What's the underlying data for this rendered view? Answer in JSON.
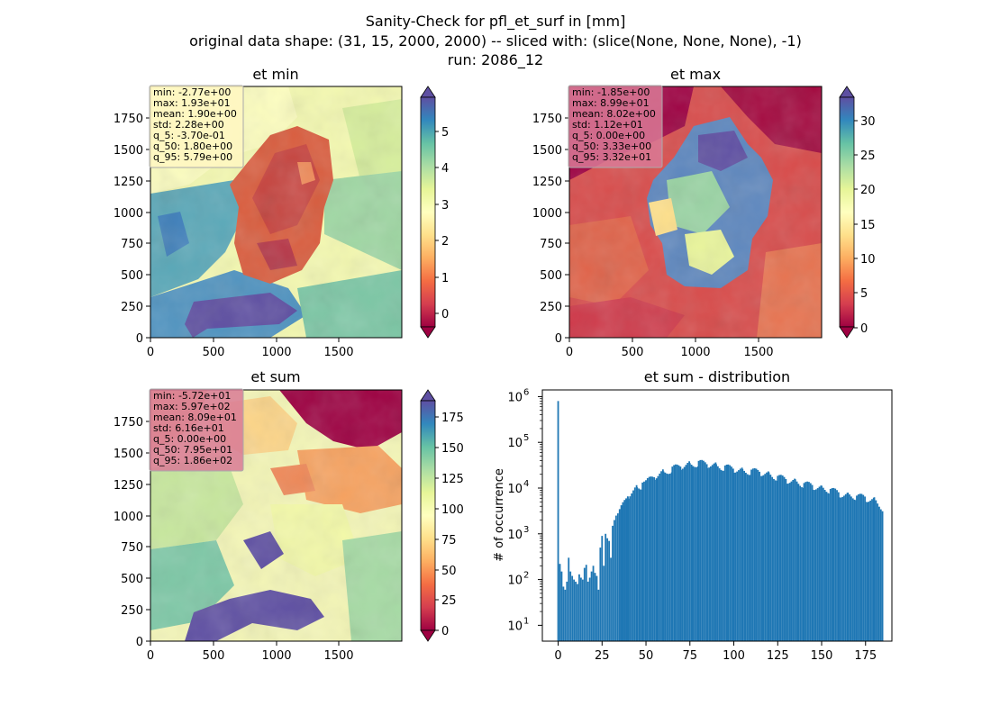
{
  "figure": {
    "suptitle": [
      "Sanity-Check for pfl_et_surf in [mm]",
      "original data shape: (31, 15, 2000, 2000) -- sliced with: (slice(None, None, None), -1)",
      "run: 2086_12"
    ]
  },
  "chart_data": [
    {
      "type": "heatmap",
      "title": "et min",
      "colormap": "Spectral",
      "x_ticks": [
        "0",
        "500",
        "1000",
        "1500"
      ],
      "y_ticks": [
        "0",
        "250",
        "500",
        "750",
        "1000",
        "1250",
        "1500",
        "1750"
      ],
      "xlim": [
        0,
        2000
      ],
      "ylim": [
        0,
        2000
      ],
      "colorbar": {
        "ticks": [
          "0",
          "1",
          "2",
          "3",
          "4",
          "5"
        ],
        "range": [
          -0.5,
          5.8
        ],
        "extend": "both"
      },
      "stats": [
        "min: -2.77e+00",
        "max: 1.93e+01",
        "mean: 1.90e+00",
        "std: 2.28e+00",
        "q_5: -3.70e-01",
        "q_50: 1.80e+00",
        "q_95: 5.79e+00"
      ],
      "stats_box_color": "#fff7c2"
    },
    {
      "type": "heatmap",
      "title": "et max",
      "colormap": "Spectral",
      "x_ticks": [
        "0",
        "500",
        "1000",
        "1500"
      ],
      "y_ticks": [
        "0",
        "250",
        "500",
        "750",
        "1000",
        "1250",
        "1500",
        "1750"
      ],
      "xlim": [
        0,
        2000
      ],
      "ylim": [
        0,
        2000
      ],
      "colorbar": {
        "ticks": [
          "0",
          "5",
          "10",
          "15",
          "20",
          "25",
          "30"
        ],
        "range": [
          -1,
          33.5
        ],
        "extend": "both"
      },
      "stats": [
        "min: -1.85e+00",
        "max: 8.99e+01",
        "mean: 8.02e+00",
        "std: 1.12e+01",
        "q_5: 0.00e+00",
        "q_50: 3.33e+00",
        "q_95: 3.32e+01"
      ],
      "stats_box_color": "#d97a96"
    },
    {
      "type": "heatmap",
      "title": "et sum",
      "colormap": "Spectral",
      "x_ticks": [
        "0",
        "500",
        "1000",
        "1500"
      ],
      "y_ticks": [
        "0",
        "250",
        "500",
        "750",
        "1000",
        "1250",
        "1500",
        "1750"
      ],
      "xlim": [
        0,
        2000
      ],
      "ylim": [
        0,
        2000
      ],
      "colorbar": {
        "ticks": [
          "0",
          "25",
          "50",
          "75",
          "100",
          "125",
          "150",
          "175"
        ],
        "range": [
          -4,
          193
        ],
        "extend": "both"
      },
      "stats": [
        "min: -5.72e+01",
        "max: 5.97e+02",
        "mean: 8.09e+01",
        "std: 6.16e+01",
        "q_5: 0.00e+00",
        "q_50: 7.95e+01",
        "q_95: 1.86e+02"
      ],
      "stats_box_color": "#d97a96"
    },
    {
      "type": "bar",
      "title": "et sum - distribution",
      "xlabel": "",
      "ylabel": "# of occurrence",
      "xlim": [
        -9,
        190
      ],
      "ylim": [
        4.5,
        1400000
      ],
      "yscale": "log",
      "x_ticks": [
        "0",
        "25",
        "50",
        "75",
        "100",
        "125",
        "150",
        "175"
      ],
      "y_ticks": [
        "10^1",
        "10^2",
        "10^3",
        "10^4",
        "10^5",
        "10^6"
      ],
      "bar_color": "#1f77b4",
      "bin_width": 0.93,
      "x": [
        0,
        35,
        40,
        45,
        48,
        50,
        55,
        60,
        65,
        70,
        75,
        80,
        85,
        90,
        95,
        100,
        105,
        110,
        115,
        120,
        125,
        130,
        135,
        140,
        145,
        150,
        155,
        160,
        165,
        170,
        175,
        180,
        185.5
      ],
      "values": [
        800000,
        3000,
        7000,
        10000,
        11000,
        13000,
        18000,
        22000,
        26000,
        30000,
        33000,
        35000,
        33000,
        31000,
        28000,
        26000,
        24000,
        23000,
        22000,
        20000,
        17000,
        15000,
        14000,
        12000,
        11000,
        10000,
        9000,
        7500,
        7000,
        6500,
        6000,
        5500,
        3500
      ],
      "low_bins_x": [
        1,
        2,
        3,
        4,
        5,
        6,
        7,
        8,
        9,
        10,
        11,
        12,
        13,
        14,
        15,
        16,
        17,
        18,
        19,
        20,
        21,
        22,
        23,
        24,
        25,
        26,
        27,
        28,
        29,
        30,
        31,
        32,
        33,
        34
      ],
      "low_bins_values": [
        220,
        150,
        70,
        60,
        90,
        300,
        150,
        120,
        100,
        90,
        80,
        130,
        110,
        100,
        180,
        210,
        90,
        110,
        150,
        200,
        140,
        120,
        60,
        500,
        900,
        200,
        1000,
        800,
        700,
        300,
        1500,
        2000,
        2500,
        2800
      ]
    }
  ]
}
